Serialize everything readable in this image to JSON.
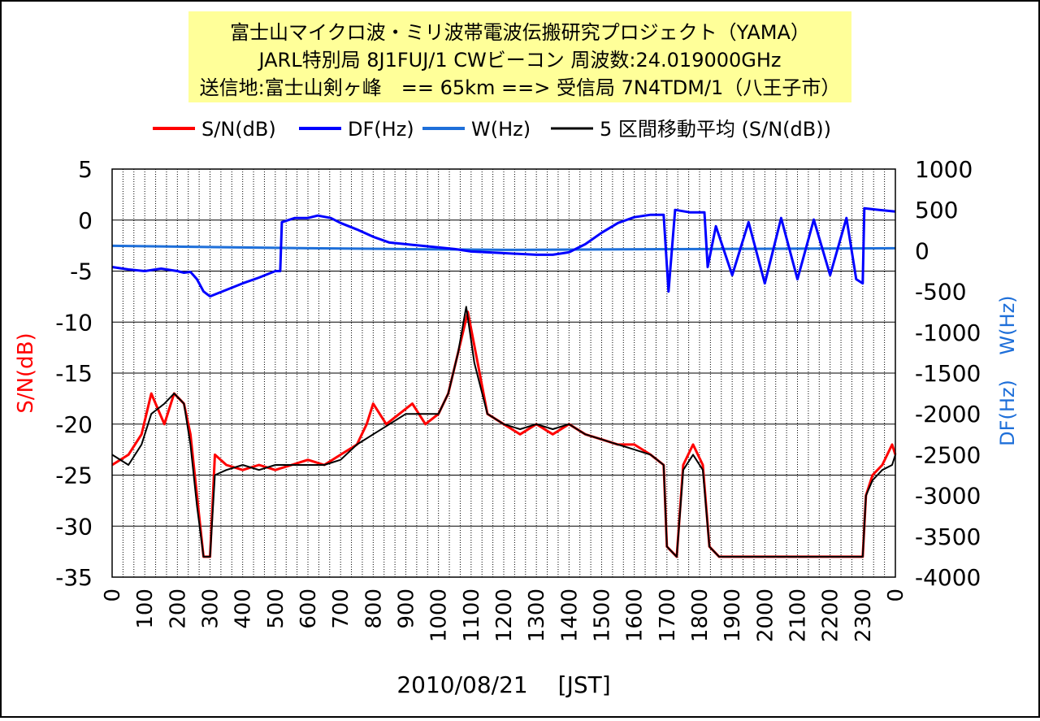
{
  "chart_data": {
    "type": "line",
    "title_lines": [
      "富士山マイクロ波・ミリ波帯電波伝搬研究プロジェクト（YAMA）",
      "JARL特別局 8J1FUJ/1 CWビーコン 周波数:24.019000GHz",
      "送信地:富士山剣ヶ峰　== 65km ==> 受信局 7N4TDM/1（八王子市）"
    ],
    "xlabel": "2010/08/21　 [JST]",
    "ylabel_left": "S/N(dB)",
    "ylabel_right_df": "DF(Hz)",
    "ylabel_right_w": "W(Hz)",
    "y_left_range": [
      -35,
      5
    ],
    "y_left_ticks": [
      "5",
      "0",
      "-5",
      "-10",
      "-15",
      "-20",
      "-25",
      "-30",
      "-35"
    ],
    "y_right_range": [
      -4000,
      1000
    ],
    "y_right_ticks": [
      "1000",
      "500",
      "0",
      "-500",
      "-1000",
      "-1500",
      "-2000",
      "-2500",
      "-3000",
      "-3500",
      "-4000"
    ],
    "x_tick_labels": [
      "0",
      "100",
      "200",
      "300",
      "400",
      "500",
      "600",
      "700",
      "800",
      "900",
      "1000",
      "1100",
      "1200",
      "1300",
      "1400",
      "1500",
      "1600",
      "1700",
      "1800",
      "1900",
      "2000",
      "2100",
      "2200",
      "2300",
      "0"
    ],
    "x_range_hours": [
      0,
      24
    ],
    "grid": true,
    "legend_position": "top",
    "series": [
      {
        "name": "S/N(dB)",
        "color": "#ff0000",
        "axis": "left",
        "points": [
          [
            0,
            -24
          ],
          [
            0.5,
            -23
          ],
          [
            0.9,
            -21
          ],
          [
            1.2,
            -17
          ],
          [
            1.6,
            -20
          ],
          [
            1.9,
            -17
          ],
          [
            2.2,
            -18
          ],
          [
            2.4,
            -21
          ],
          [
            2.6,
            -27
          ],
          [
            2.8,
            -33
          ],
          [
            3.0,
            -33
          ],
          [
            3.15,
            -23
          ],
          [
            3.5,
            -24
          ],
          [
            4.0,
            -24.5
          ],
          [
            4.5,
            -24
          ],
          [
            5.0,
            -24.5
          ],
          [
            5.5,
            -24
          ],
          [
            6.0,
            -23.5
          ],
          [
            6.5,
            -24
          ],
          [
            7.0,
            -23
          ],
          [
            7.5,
            -22
          ],
          [
            7.8,
            -20
          ],
          [
            8.0,
            -18
          ],
          [
            8.4,
            -20
          ],
          [
            8.8,
            -19
          ],
          [
            9.2,
            -18
          ],
          [
            9.6,
            -20
          ],
          [
            10.0,
            -19
          ],
          [
            10.3,
            -17
          ],
          [
            10.6,
            -13
          ],
          [
            10.9,
            -9
          ],
          [
            11.2,
            -14
          ],
          [
            11.5,
            -19
          ],
          [
            12.0,
            -20
          ],
          [
            12.5,
            -21
          ],
          [
            13.0,
            -20
          ],
          [
            13.5,
            -21
          ],
          [
            14.0,
            -20
          ],
          [
            14.5,
            -21
          ],
          [
            15.0,
            -21.5
          ],
          [
            15.5,
            -22
          ],
          [
            16.0,
            -22
          ],
          [
            16.5,
            -23
          ],
          [
            16.9,
            -24
          ],
          [
            17.0,
            -32
          ],
          [
            17.3,
            -33
          ],
          [
            17.5,
            -24
          ],
          [
            17.8,
            -22
          ],
          [
            18.1,
            -24
          ],
          [
            18.3,
            -32
          ],
          [
            18.6,
            -33
          ],
          [
            19.0,
            -33
          ],
          [
            20.0,
            -33
          ],
          [
            21.0,
            -33
          ],
          [
            22.0,
            -33
          ],
          [
            23.0,
            -33
          ],
          [
            23.1,
            -27
          ],
          [
            23.3,
            -25
          ],
          [
            23.6,
            -24
          ],
          [
            23.9,
            -22
          ],
          [
            24.0,
            -23
          ]
        ]
      },
      {
        "name": "DF(Hz)",
        "color": "#0000ff",
        "axis": "right",
        "points": [
          [
            0,
            -200
          ],
          [
            0.5,
            -230
          ],
          [
            1.0,
            -250
          ],
          [
            1.5,
            -220
          ],
          [
            2.0,
            -250
          ],
          [
            2.2,
            -270
          ],
          [
            2.4,
            -260
          ],
          [
            2.6,
            -350
          ],
          [
            2.8,
            -500
          ],
          [
            3.0,
            -560
          ],
          [
            3.5,
            -480
          ],
          [
            4.0,
            -400
          ],
          [
            4.5,
            -330
          ],
          [
            5.0,
            -250
          ],
          [
            5.15,
            -250
          ],
          [
            5.2,
            350
          ],
          [
            5.6,
            400
          ],
          [
            6.0,
            400
          ],
          [
            6.3,
            430
          ],
          [
            6.7,
            400
          ],
          [
            7.0,
            340
          ],
          [
            7.5,
            260
          ],
          [
            8.0,
            170
          ],
          [
            8.5,
            100
          ],
          [
            9.0,
            80
          ],
          [
            9.5,
            60
          ],
          [
            10.0,
            40
          ],
          [
            10.5,
            20
          ],
          [
            11.0,
            -10
          ],
          [
            11.5,
            -20
          ],
          [
            12.0,
            -30
          ],
          [
            12.5,
            -40
          ],
          [
            13.0,
            -50
          ],
          [
            13.5,
            -50
          ],
          [
            14.0,
            -20
          ],
          [
            14.5,
            80
          ],
          [
            15.0,
            220
          ],
          [
            15.5,
            340
          ],
          [
            16.0,
            410
          ],
          [
            16.5,
            440
          ],
          [
            16.9,
            440
          ],
          [
            17.05,
            -500
          ],
          [
            17.25,
            500
          ],
          [
            17.7,
            470
          ],
          [
            18.15,
            470
          ],
          [
            18.25,
            -200
          ],
          [
            18.5,
            300
          ],
          [
            19.0,
            -300
          ],
          [
            19.5,
            350
          ],
          [
            20.0,
            -400
          ],
          [
            20.5,
            400
          ],
          [
            21.0,
            -350
          ],
          [
            21.5,
            380
          ],
          [
            22.0,
            -300
          ],
          [
            22.5,
            400
          ],
          [
            22.8,
            -350
          ],
          [
            23.0,
            -400
          ],
          [
            23.05,
            520
          ],
          [
            23.5,
            500
          ],
          [
            24.0,
            480
          ]
        ]
      },
      {
        "name": "W(Hz)",
        "color": "#1e6fd9",
        "axis": "right",
        "points": [
          [
            0,
            60
          ],
          [
            6.0,
            30
          ],
          [
            12.0,
            10
          ],
          [
            18.0,
            20
          ],
          [
            24.0,
            30
          ]
        ]
      },
      {
        "name": "5 区間移動平均 (S/N(dB))",
        "color": "#000000",
        "axis": "left",
        "points": [
          [
            0,
            -23
          ],
          [
            0.5,
            -24
          ],
          [
            0.9,
            -22
          ],
          [
            1.2,
            -19
          ],
          [
            1.6,
            -18
          ],
          [
            1.9,
            -17
          ],
          [
            2.2,
            -18
          ],
          [
            2.4,
            -22
          ],
          [
            2.6,
            -28
          ],
          [
            2.8,
            -33
          ],
          [
            3.0,
            -33
          ],
          [
            3.15,
            -25
          ],
          [
            3.5,
            -24.5
          ],
          [
            4.0,
            -24
          ],
          [
            4.5,
            -24.5
          ],
          [
            5.0,
            -24
          ],
          [
            5.5,
            -24
          ],
          [
            6.0,
            -24
          ],
          [
            6.5,
            -24
          ],
          [
            7.0,
            -23.5
          ],
          [
            7.5,
            -22
          ],
          [
            8.0,
            -21
          ],
          [
            8.5,
            -20
          ],
          [
            9.0,
            -19
          ],
          [
            9.5,
            -19
          ],
          [
            10.0,
            -19
          ],
          [
            10.3,
            -17
          ],
          [
            10.6,
            -13
          ],
          [
            10.85,
            -8.5
          ],
          [
            11.1,
            -14
          ],
          [
            11.5,
            -19
          ],
          [
            12.0,
            -20
          ],
          [
            12.5,
            -20.5
          ],
          [
            13.0,
            -20
          ],
          [
            13.5,
            -20.5
          ],
          [
            14.0,
            -20
          ],
          [
            14.5,
            -21
          ],
          [
            15.0,
            -21.5
          ],
          [
            15.5,
            -22
          ],
          [
            16.0,
            -22.5
          ],
          [
            16.5,
            -23
          ],
          [
            16.9,
            -24
          ],
          [
            17.0,
            -32
          ],
          [
            17.3,
            -33
          ],
          [
            17.5,
            -24.5
          ],
          [
            17.8,
            -23
          ],
          [
            18.1,
            -24.5
          ],
          [
            18.3,
            -32
          ],
          [
            18.6,
            -33
          ],
          [
            19.0,
            -33
          ],
          [
            20.0,
            -33
          ],
          [
            21.0,
            -33
          ],
          [
            22.0,
            -33
          ],
          [
            23.0,
            -33
          ],
          [
            23.1,
            -27
          ],
          [
            23.3,
            -25.5
          ],
          [
            23.6,
            -24.5
          ],
          [
            23.9,
            -24
          ],
          [
            24.0,
            -23
          ]
        ]
      }
    ]
  }
}
